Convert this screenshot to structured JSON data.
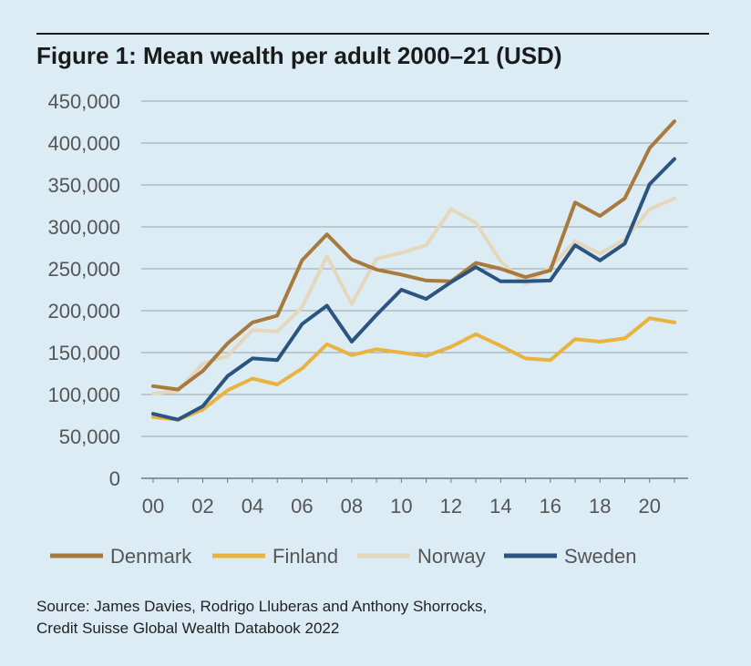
{
  "chart_data": {
    "type": "line",
    "title": "Figure 1: Mean wealth per adult 2000–21 (USD)",
    "xlabel": "",
    "ylabel": "",
    "x": [
      2000,
      2001,
      2002,
      2003,
      2004,
      2005,
      2006,
      2007,
      2008,
      2009,
      2010,
      2011,
      2012,
      2013,
      2014,
      2015,
      2016,
      2017,
      2018,
      2019,
      2020,
      2021
    ],
    "xticks": [
      2000,
      2002,
      2004,
      2006,
      2008,
      2010,
      2012,
      2014,
      2016,
      2018,
      2020
    ],
    "xtick_labels": [
      "00",
      "02",
      "04",
      "06",
      "08",
      "10",
      "12",
      "14",
      "16",
      "18",
      "20"
    ],
    "xlim": [
      2000,
      2021
    ],
    "ylim": [
      0,
      450000
    ],
    "yticks": [
      0,
      50000,
      100000,
      150000,
      200000,
      250000,
      300000,
      350000,
      400000,
      450000
    ],
    "ytick_labels": [
      "0",
      "50,000",
      "100,000",
      "150,000",
      "200,000",
      "250,000",
      "300,000",
      "350,000",
      "400,000",
      "450,000"
    ],
    "grid": "horizontal",
    "legend_position": "bottom",
    "series": [
      {
        "name": "Denmark",
        "color": "#a87a3d",
        "values": [
          110000,
          106000,
          128000,
          161000,
          186000,
          194000,
          260000,
          291000,
          261000,
          249000,
          243000,
          236000,
          235000,
          257000,
          250000,
          240000,
          248000,
          329000,
          313000,
          334000,
          394000,
          426000
        ]
      },
      {
        "name": "Finland",
        "color": "#e8b33e",
        "values": [
          73000,
          70000,
          82000,
          105000,
          119000,
          112000,
          131000,
          160000,
          147000,
          154000,
          150000,
          146000,
          157000,
          172000,
          158000,
          143000,
          141000,
          166000,
          163000,
          167000,
          191000,
          186000
        ]
      },
      {
        "name": "Norway",
        "color": "#e5d7bc",
        "values": [
          101000,
          104000,
          137000,
          146000,
          177000,
          175000,
          204000,
          265000,
          208000,
          262000,
          269000,
          278000,
          321000,
          305000,
          259000,
          232000,
          252000,
          283000,
          268000,
          285000,
          321000,
          334000
        ]
      },
      {
        "name": "Sweden",
        "color": "#2b5580",
        "values": [
          77000,
          70000,
          86000,
          122000,
          143000,
          141000,
          184000,
          206000,
          163000,
          195000,
          225000,
          214000,
          234000,
          252000,
          235000,
          235000,
          236000,
          278000,
          260000,
          280000,
          351000,
          381000
        ]
      }
    ]
  },
  "source": {
    "line1": "Source: James Davies, Rodrigo Lluberas and Anthony Shorrocks,",
    "line2": "Credit Suisse Global Wealth Databook 2022"
  }
}
